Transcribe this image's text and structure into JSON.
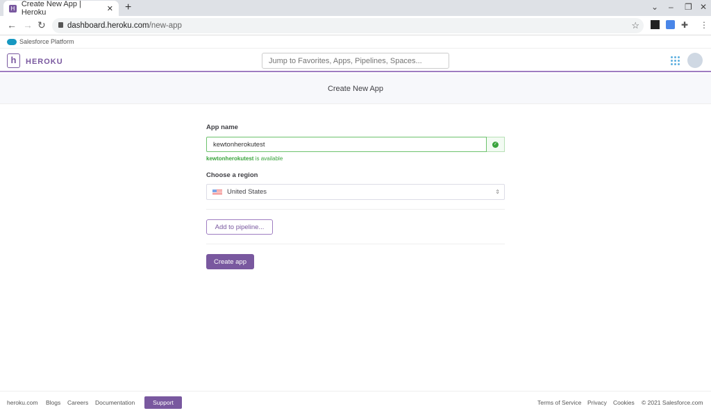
{
  "browser": {
    "tab_title": "Create New App | Heroku",
    "url_host": "dashboard.heroku.com",
    "url_path": "/new-app",
    "bookmark": "Salesforce Platform"
  },
  "header": {
    "brand": "HEROKU",
    "search_placeholder": "Jump to Favorites, Apps, Pipelines, Spaces..."
  },
  "page": {
    "title": "Create New App"
  },
  "form": {
    "app_name_label": "App name",
    "app_name_value": "kewtonherokutest",
    "availability_name": "kewtonherokutest",
    "availability_suffix": " is available",
    "region_label": "Choose a region",
    "region_value": "United States",
    "pipeline_button": "Add to pipeline...",
    "create_button": "Create app"
  },
  "colors": {
    "accent": "#79589f",
    "success": "#3aa43d"
  },
  "footer": {
    "left": [
      "heroku.com",
      "Blogs",
      "Careers",
      "Documentation"
    ],
    "support": "Support",
    "right": [
      "Terms of Service",
      "Privacy",
      "Cookies",
      "© 2021 Salesforce.com"
    ]
  }
}
